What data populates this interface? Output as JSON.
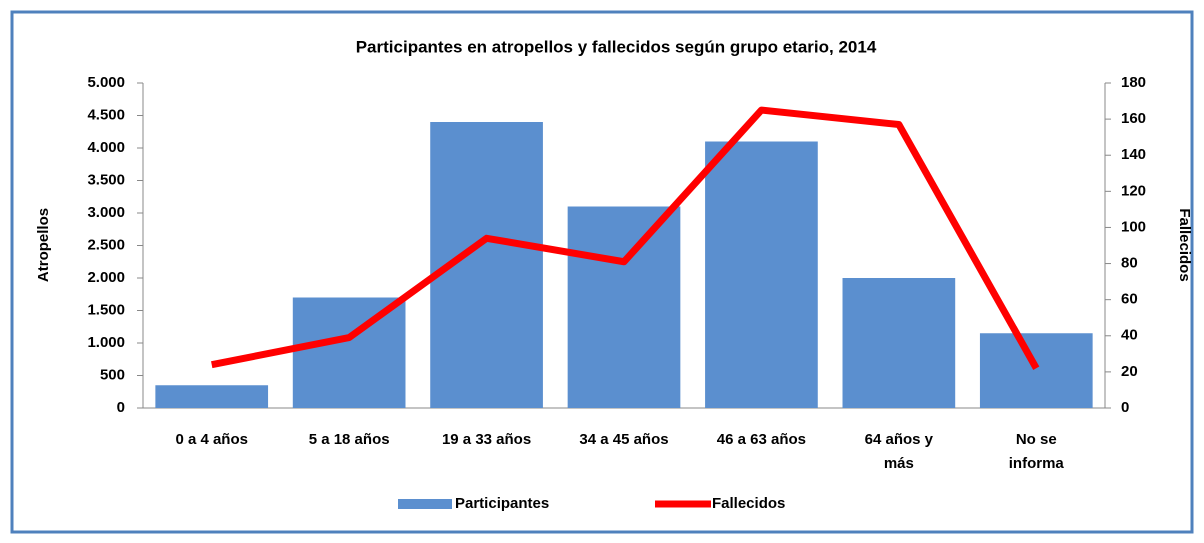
{
  "chart_data": {
    "type": "bar_line",
    "title": "Participantes en atropellos y fallecidos según grupo etario, 2014",
    "ylabel": "Atropellos",
    "y2label": "Fallecidos",
    "categories": [
      "0 a 4 años",
      "5 a 18 años",
      "19 a 33 años",
      "34 a 45 años",
      "46 a 63 años",
      "64 años y más",
      "No se informa"
    ],
    "series": [
      {
        "name": "Participantes",
        "type": "bar",
        "color": "#5b8fcf",
        "values": [
          350,
          1700,
          4400,
          3100,
          4100,
          2000,
          1150
        ]
      },
      {
        "name": "Fallecidos",
        "type": "line",
        "axis": "y2",
        "color": "#ff0000",
        "values": [
          24,
          39,
          94,
          81,
          165,
          157,
          22
        ]
      }
    ],
    "ylim": [
      0,
      5000
    ],
    "yticks": [
      0,
      500,
      {
        "value": 1000,
        "label": "1.000"
      },
      {
        "value": 1500,
        "label": "1.500"
      },
      {
        "value": 2000,
        "label": "2.000"
      },
      {
        "value": 2500,
        "label": "2.500"
      },
      {
        "value": 3000,
        "label": "3.000"
      },
      {
        "value": 3500,
        "label": "3.500"
      },
      {
        "value": 4000,
        "label": "4.000"
      },
      {
        "value": 4500,
        "label": "4.500"
      },
      {
        "value": 5000,
        "label": "5.000"
      }
    ],
    "y2lim": [
      0,
      180
    ],
    "y2ticks": [
      0,
      20,
      40,
      60,
      80,
      100,
      120,
      140,
      160,
      180
    ],
    "legend": "bottom"
  }
}
